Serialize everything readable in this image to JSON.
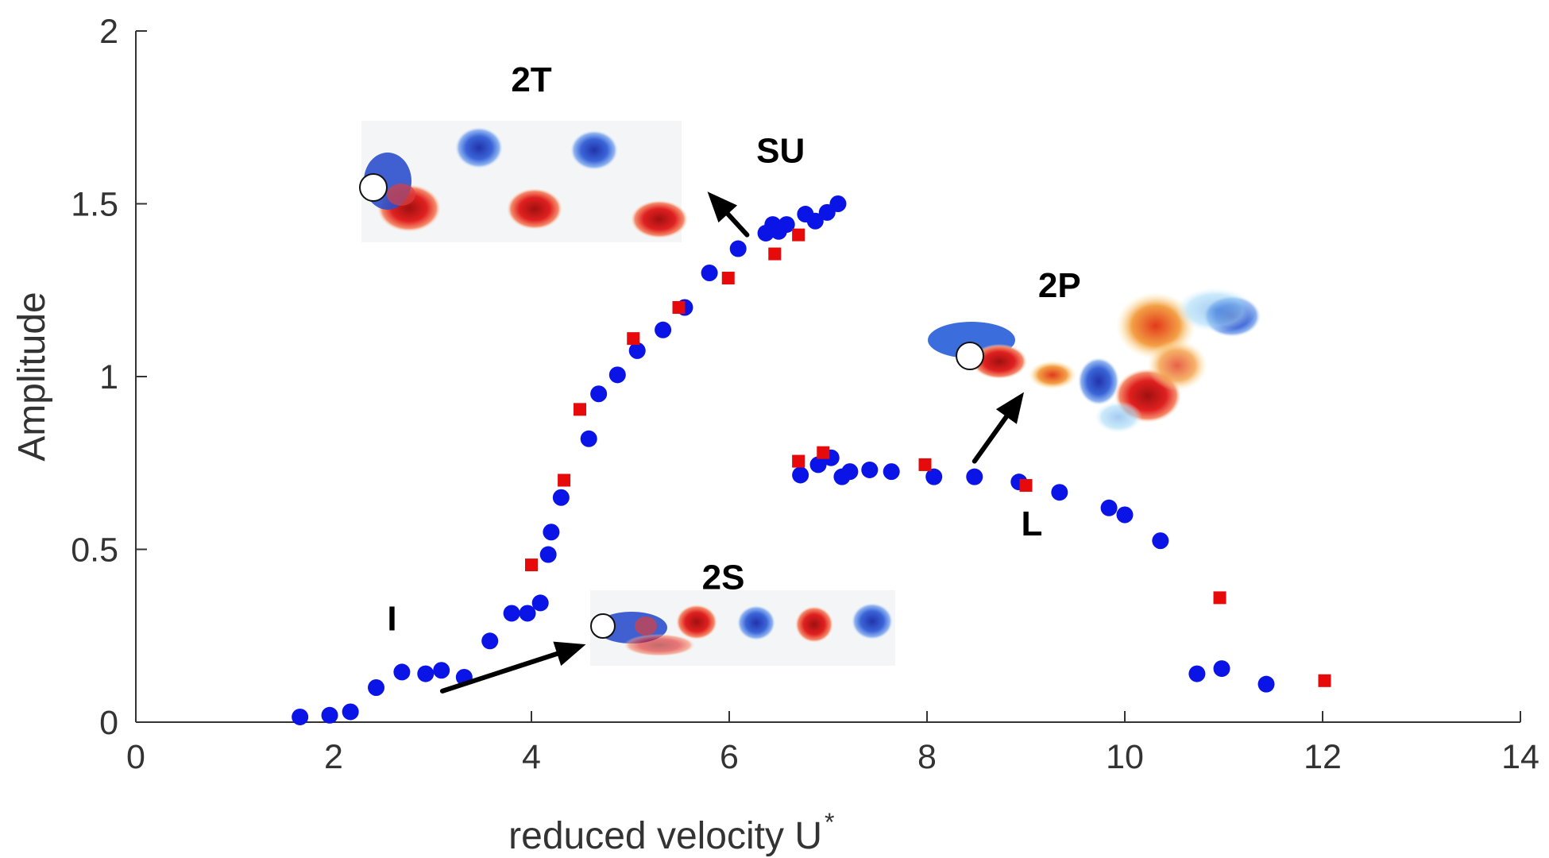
{
  "chart_data": {
    "type": "scatter",
    "xlabel": "reduced velocity U",
    "xlabel_superscript": "*",
    "ylabel": "Amplitude",
    "xlim": [
      0,
      14
    ],
    "ylim": [
      0,
      2
    ],
    "xticks": [
      0,
      2,
      4,
      6,
      8,
      10,
      12,
      14
    ],
    "xtick_labels": [
      "0",
      "2",
      "4",
      "6",
      "8",
      "10",
      "12",
      "14"
    ],
    "yticks": [
      0,
      0.5,
      1,
      1.5,
      2
    ],
    "ytick_labels": [
      "0",
      "0.5",
      "1",
      "1.5",
      "2"
    ],
    "series": [
      {
        "name": "blue circles",
        "marker": "circle",
        "color": "#0a14e6",
        "points": [
          [
            1.66,
            0.015
          ],
          [
            1.96,
            0.02
          ],
          [
            2.17,
            0.03
          ],
          [
            2.43,
            0.1
          ],
          [
            2.69,
            0.145
          ],
          [
            2.93,
            0.14
          ],
          [
            3.09,
            0.15
          ],
          [
            3.32,
            0.13
          ],
          [
            3.58,
            0.235
          ],
          [
            3.8,
            0.315
          ],
          [
            3.96,
            0.315
          ],
          [
            4.09,
            0.345
          ],
          [
            4.17,
            0.485
          ],
          [
            4.2,
            0.55
          ],
          [
            4.3,
            0.65
          ],
          [
            4.58,
            0.82
          ],
          [
            4.68,
            0.95
          ],
          [
            4.87,
            1.005
          ],
          [
            5.07,
            1.075
          ],
          [
            5.33,
            1.135
          ],
          [
            5.55,
            1.2
          ],
          [
            5.8,
            1.3
          ],
          [
            6.09,
            1.37
          ],
          [
            6.37,
            1.415
          ],
          [
            6.44,
            1.44
          ],
          [
            6.5,
            1.42
          ],
          [
            6.58,
            1.44
          ],
          [
            6.77,
            1.47
          ],
          [
            6.87,
            1.45
          ],
          [
            6.99,
            1.475
          ],
          [
            7.1,
            1.5
          ],
          [
            6.72,
            0.715
          ],
          [
            6.9,
            0.745
          ],
          [
            7.03,
            0.765
          ],
          [
            7.14,
            0.71
          ],
          [
            7.22,
            0.725
          ],
          [
            7.42,
            0.73
          ],
          [
            7.64,
            0.725
          ],
          [
            8.07,
            0.71
          ],
          [
            8.48,
            0.71
          ],
          [
            8.93,
            0.695
          ],
          [
            9.34,
            0.665
          ],
          [
            9.84,
            0.62
          ],
          [
            10.0,
            0.6
          ],
          [
            10.36,
            0.525
          ],
          [
            10.73,
            0.14
          ],
          [
            10.98,
            0.155
          ],
          [
            11.43,
            0.11
          ]
        ]
      },
      {
        "name": "red squares",
        "marker": "square",
        "color": "#e60a0a",
        "points": [
          [
            4.0,
            0.455
          ],
          [
            4.33,
            0.7
          ],
          [
            4.49,
            0.905
          ],
          [
            5.03,
            1.11
          ],
          [
            5.49,
            1.2
          ],
          [
            5.99,
            1.285
          ],
          [
            6.46,
            1.355
          ],
          [
            6.7,
            1.41
          ],
          [
            6.7,
            0.755
          ],
          [
            6.95,
            0.78
          ],
          [
            7.98,
            0.745
          ],
          [
            9.0,
            0.685
          ],
          [
            10.96,
            0.36
          ],
          [
            12.02,
            0.12
          ]
        ]
      }
    ],
    "annotations": [
      {
        "text": "2T",
        "x": 4.0,
        "y": 1.825
      },
      {
        "text": "SU",
        "x": 6.52,
        "y": 1.62
      },
      {
        "text": "2P",
        "x": 9.34,
        "y": 1.23
      },
      {
        "text": "L",
        "x": 9.06,
        "y": 0.54
      },
      {
        "text": "2S",
        "x": 5.94,
        "y": 0.385
      },
      {
        "text": "I",
        "x": 2.59,
        "y": 0.265
      }
    ],
    "arrows": [
      {
        "from": [
          6.18,
          1.41
        ],
        "to": [
          5.78,
          1.535
        ]
      },
      {
        "from": [
          8.48,
          0.755
        ],
        "to": [
          8.98,
          0.955
        ]
      },
      {
        "from": [
          3.1,
          0.09
        ],
        "to": [
          4.55,
          0.225
        ]
      }
    ],
    "insets": [
      {
        "label": "2T",
        "x0": 2.3,
        "x1": 5.54,
        "y0": 1.39,
        "y1": 1.74
      },
      {
        "label": "2P",
        "x0": 8.26,
        "x1": 11.4,
        "y0": 0.84,
        "y1": 1.23
      },
      {
        "label": "2S",
        "x0": 4.6,
        "x1": 7.66,
        "y0": 0.165,
        "y1": 0.38
      }
    ]
  }
}
